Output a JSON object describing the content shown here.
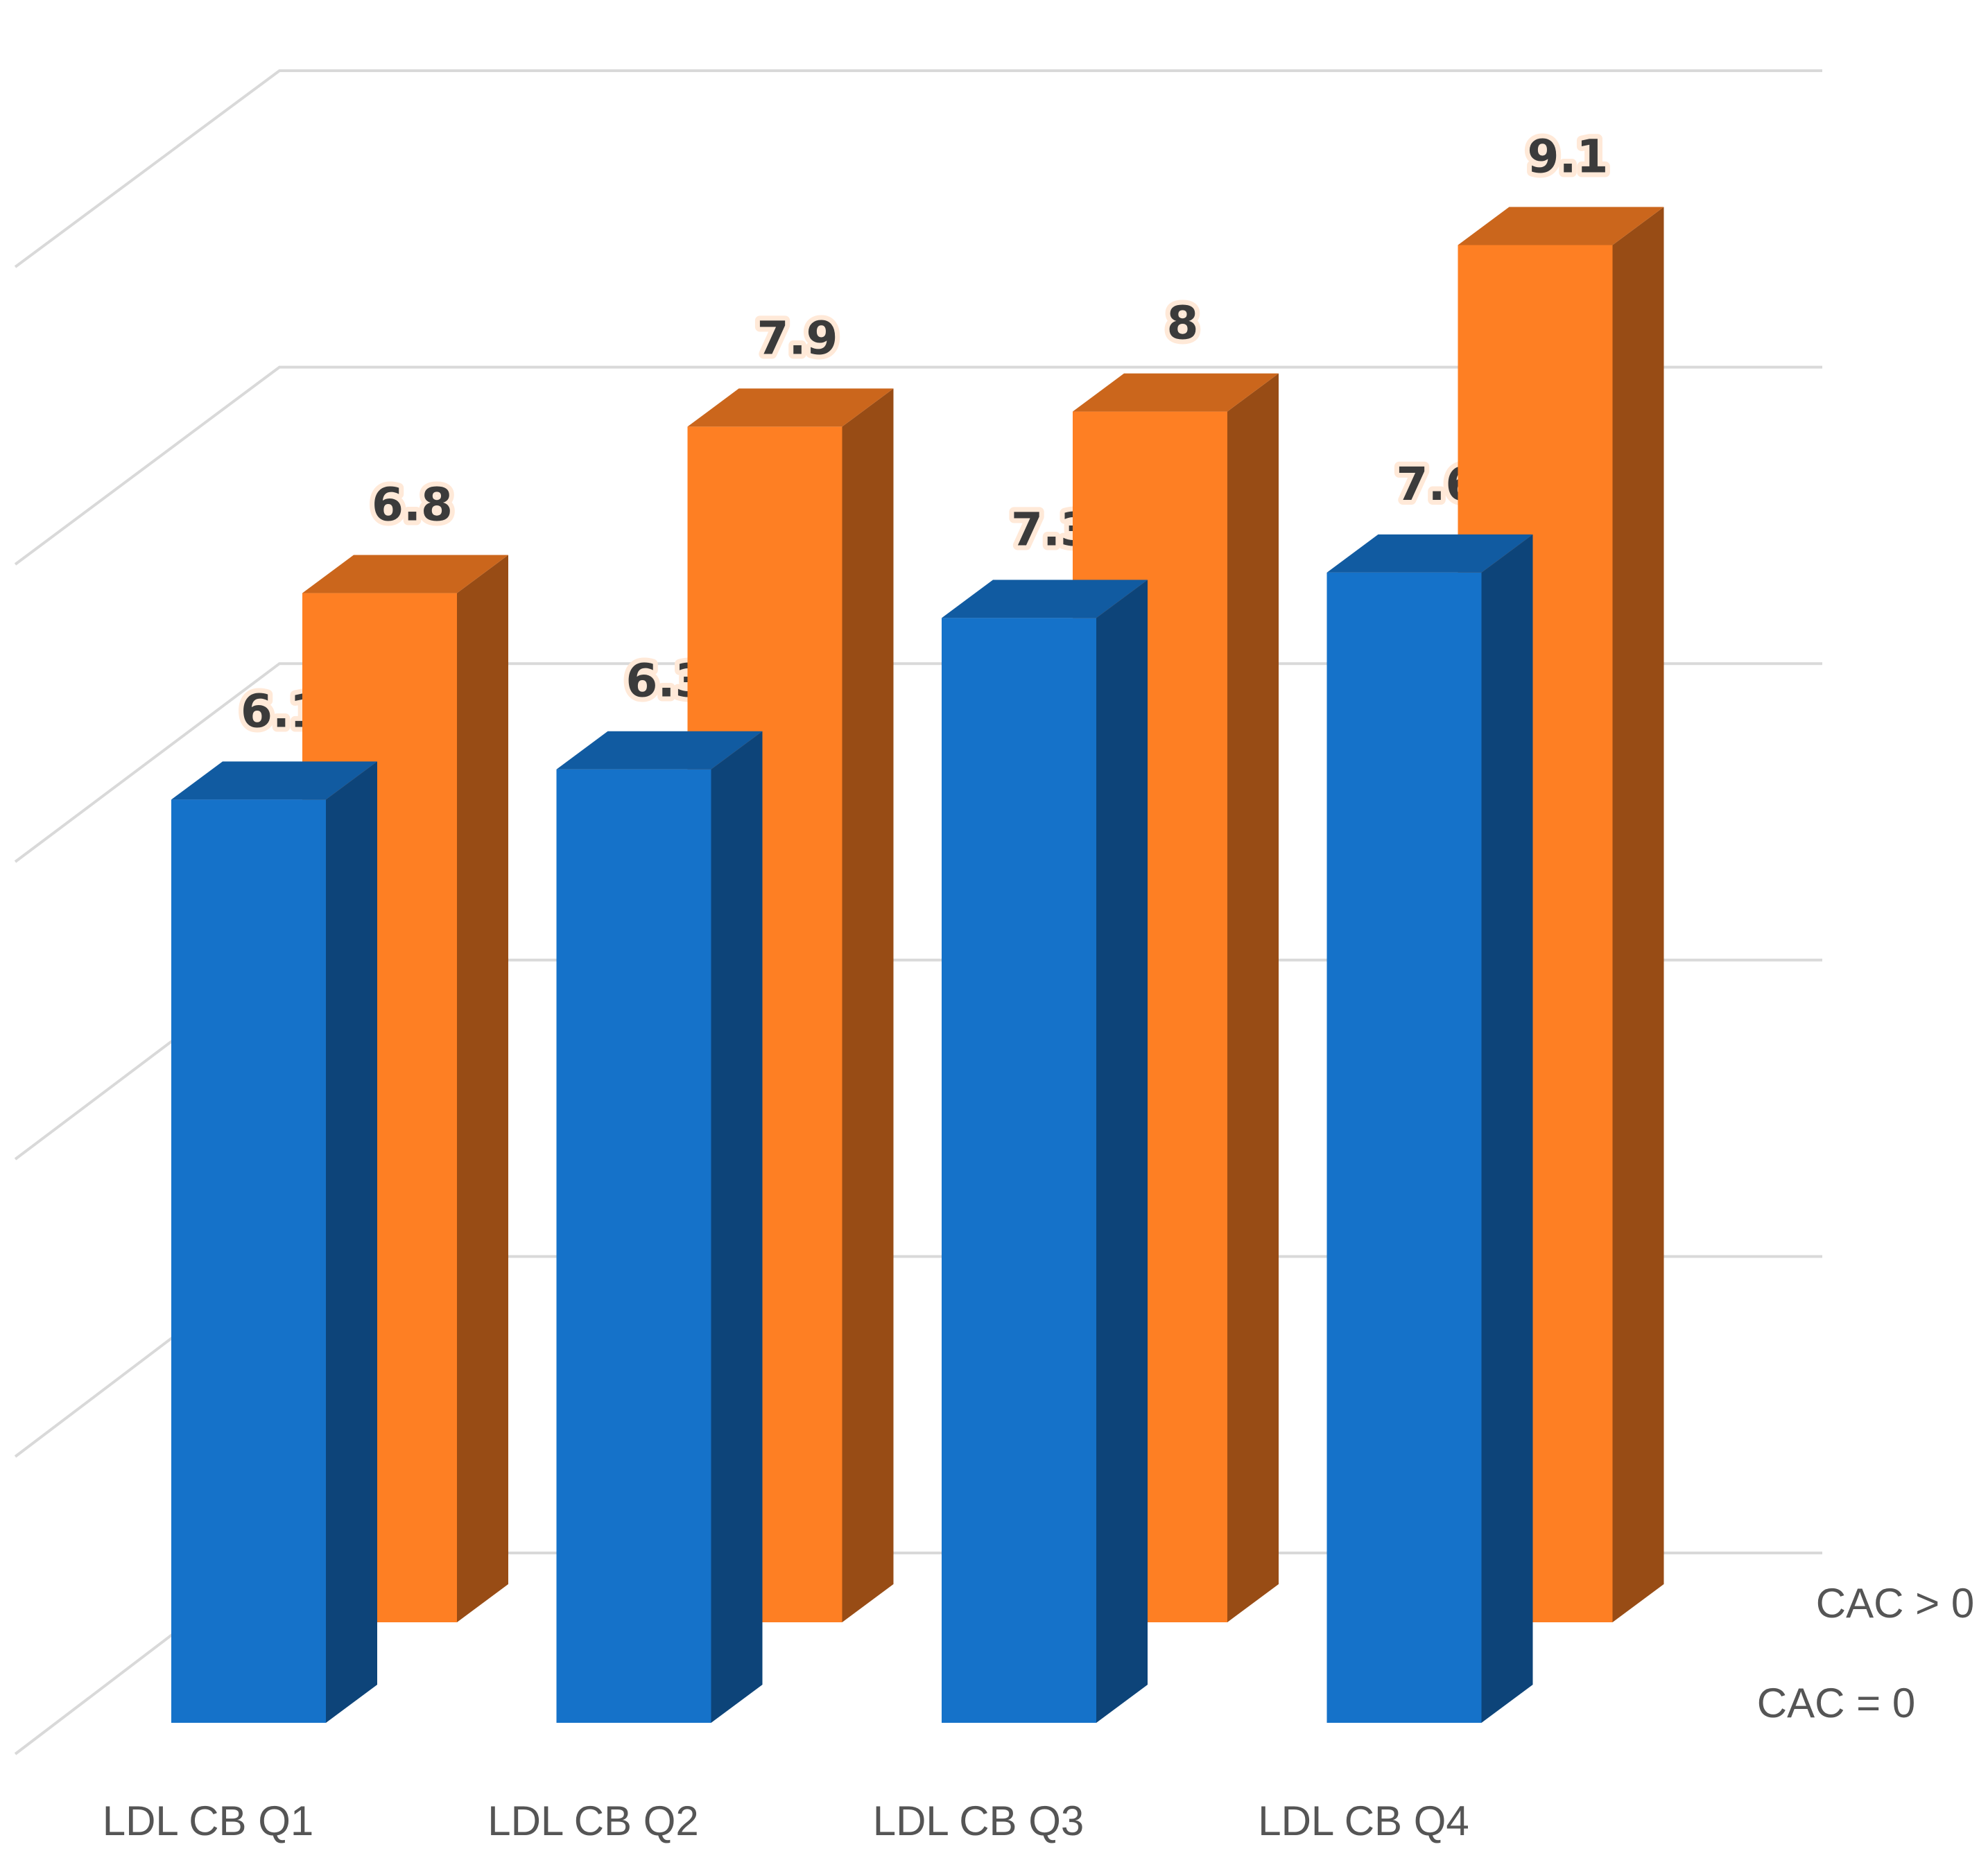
{
  "chart_data": {
    "type": "bar",
    "style": "3d-clustered-depth",
    "categories": [
      "LDL CB Q1",
      "LDL CB Q2",
      "LDL CB Q3",
      "LDL CB Q4"
    ],
    "series": [
      {
        "name": "CAC = 0",
        "values": [
          6.1,
          6.3,
          7.3,
          7.6
        ],
        "color": "#1572C9"
      },
      {
        "name": "CAC > 0",
        "values": [
          6.8,
          7.9,
          8,
          9.1
        ],
        "color": "#FE7F23"
      }
    ],
    "title": "",
    "xlabel": "",
    "ylabel": "",
    "ylim": [
      0,
      10
    ],
    "grid": true,
    "data_labels": true,
    "series_labels_position": "right-depth-axis"
  }
}
